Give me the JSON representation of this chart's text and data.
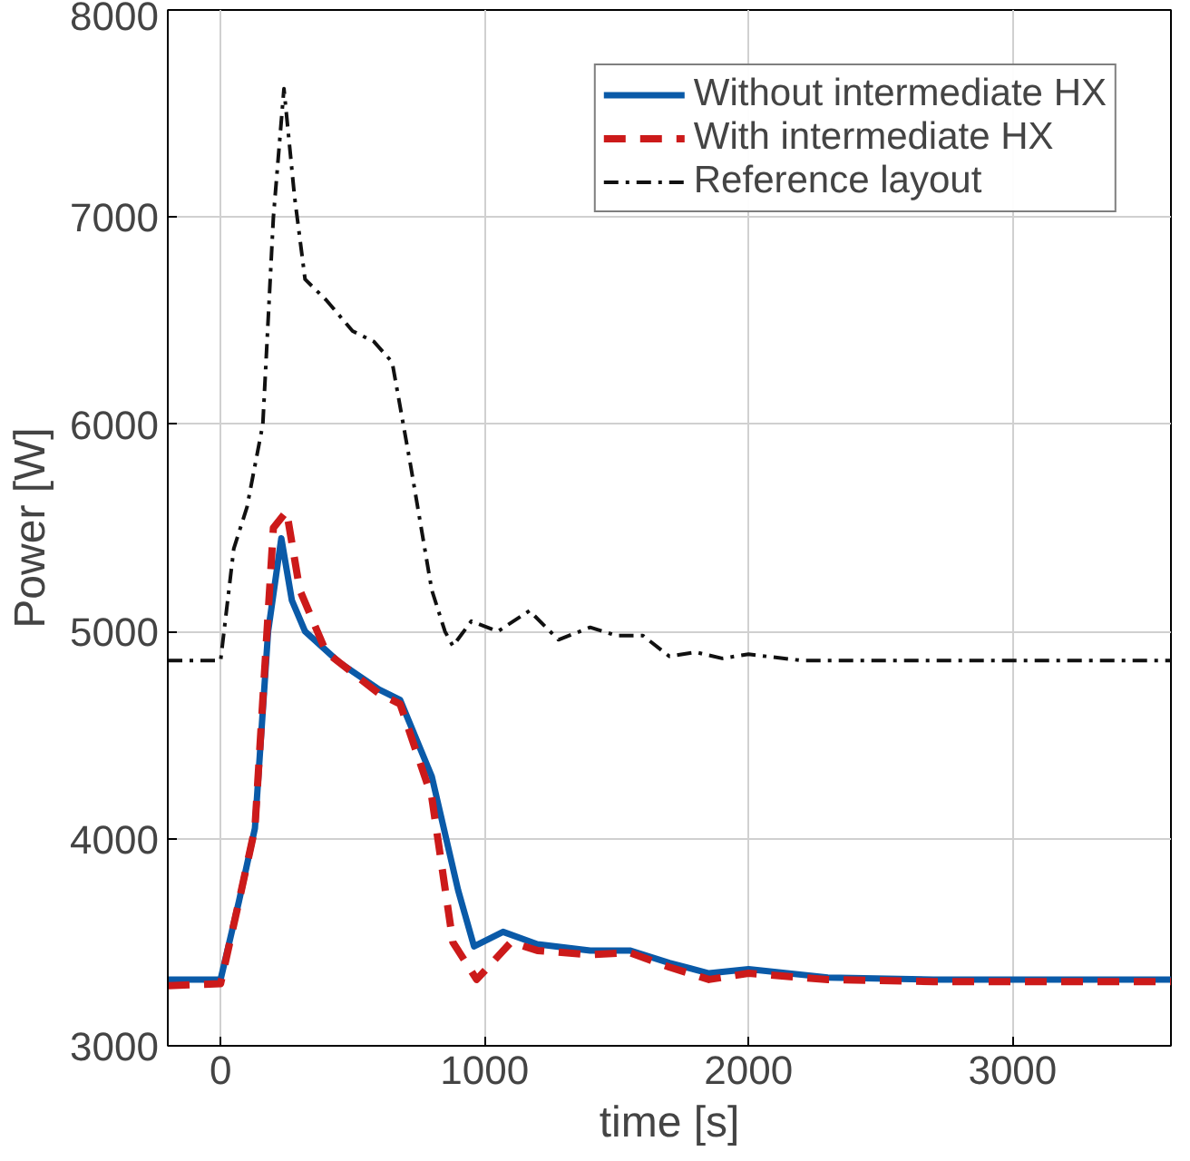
{
  "chart_data": {
    "type": "line",
    "xlabel": "time [s]",
    "ylabel": "Power [W]",
    "xlim": [
      -200,
      3600
    ],
    "xticks": [
      0,
      1000,
      2000,
      3000
    ],
    "ylim": [
      3000,
      8000
    ],
    "yticks": [
      3000,
      4000,
      5000,
      6000,
      7000,
      8000
    ],
    "grid": true,
    "legend": "top right",
    "series": [
      {
        "name": "Without intermediate HX",
        "color": "#0a5aa8",
        "line_style": "solid",
        "x": [
          -200,
          0,
          70,
          130,
          180,
          230,
          270,
          320,
          450,
          600,
          680,
          800,
          900,
          960,
          1070,
          1200,
          1400,
          1550,
          1700,
          1850,
          2000,
          2300,
          2700,
          3600
        ],
        "values": [
          3320,
          3320,
          3700,
          4050,
          5000,
          5450,
          5150,
          5000,
          4850,
          4720,
          4670,
          4300,
          3750,
          3480,
          3550,
          3490,
          3460,
          3460,
          3400,
          3350,
          3370,
          3330,
          3320,
          3320
        ]
      },
      {
        "name": "With intermediate HX",
        "color": "#cc1a1a",
        "line_style": "dashed",
        "x": [
          -200,
          0,
          70,
          130,
          200,
          250,
          300,
          400,
          600,
          680,
          800,
          880,
          970,
          1100,
          1200,
          1400,
          1550,
          1700,
          1850,
          2000,
          2300,
          2700,
          3600
        ],
        "values": [
          3290,
          3300,
          3700,
          4050,
          5500,
          5580,
          5200,
          4900,
          4700,
          4650,
          4200,
          3500,
          3320,
          3500,
          3460,
          3440,
          3450,
          3380,
          3320,
          3350,
          3320,
          3310,
          3310
        ]
      },
      {
        "name": "Reference layout",
        "color": "#111111",
        "line_style": "dashdot",
        "x": [
          -200,
          0,
          50,
          100,
          160,
          200,
          240,
          280,
          320,
          400,
          500,
          580,
          650,
          720,
          800,
          850,
          880,
          950,
          1050,
          1170,
          1280,
          1400,
          1500,
          1600,
          1700,
          1800,
          1900,
          2000,
          2200,
          3600
        ],
        "values": [
          4860,
          4860,
          5400,
          5600,
          6000,
          7000,
          7620,
          7100,
          6700,
          6600,
          6450,
          6400,
          6300,
          5800,
          5200,
          5000,
          4930,
          5050,
          5000,
          5100,
          4960,
          5020,
          4980,
          4980,
          4880,
          4900,
          4870,
          4890,
          4860,
          4860
        ]
      }
    ]
  }
}
